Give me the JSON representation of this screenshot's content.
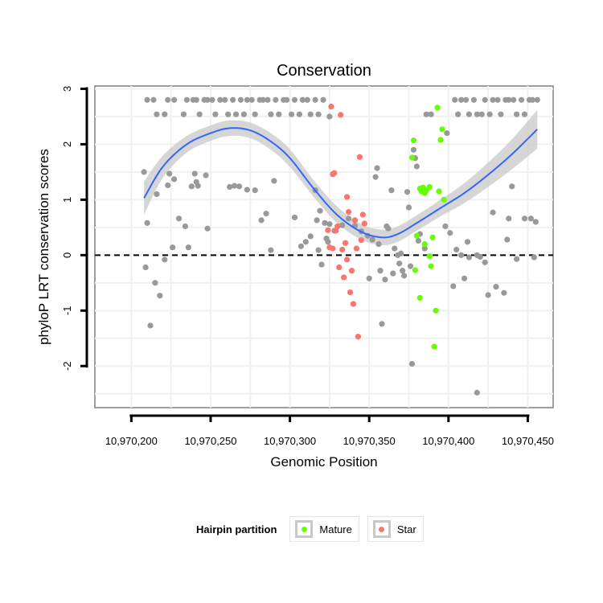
{
  "chart_data": {
    "type": "scatter",
    "title": "Conservation",
    "xlabel": "Genomic Position",
    "ylabel": "phyloP LRT conservation scores",
    "xlim": [
      10970177,
      10970466
    ],
    "ylim": [
      -2.75,
      3.05
    ],
    "x_ticks": [
      10970200,
      10970250,
      10970300,
      10970350,
      10970400,
      10970450
    ],
    "x_tick_labels": [
      "10,970,200",
      "10,970,250",
      "10,970,300",
      "10,970,350",
      "10,970,400",
      "10,970,450"
    ],
    "y_ticks": [
      -2,
      -1,
      0,
      1,
      2,
      3
    ],
    "y_tick_labels": [
      "-2",
      "-1",
      "0",
      "1",
      "2",
      "3"
    ],
    "reference_line": {
      "y": 0,
      "style": "dashed"
    },
    "grid": true,
    "legend": {
      "title": "Hairpin partition",
      "position": "bottom",
      "entries": [
        {
          "name": "Mature",
          "color": "#66ff00"
        },
        {
          "name": "Star",
          "color": "#f8766d"
        }
      ]
    },
    "colors": {
      "other": "#999999",
      "mature": "#66ff00",
      "star": "#f8766d",
      "smooth": "#3366ff",
      "band": "#cccccc"
    },
    "smooth_x": [
      10970208,
      10970220,
      10970235,
      10970250,
      10970262,
      10970275,
      10970288,
      10970300,
      10970315,
      10970330,
      10970345,
      10970358,
      10970368,
      10970380,
      10970395,
      10970410,
      10970425,
      10970440,
      10970456
    ],
    "smooth_y": [
      1.03,
      1.6,
      2.0,
      2.2,
      2.29,
      2.25,
      2.05,
      1.75,
      1.2,
      0.72,
      0.42,
      0.32,
      0.38,
      0.58,
      0.85,
      1.12,
      1.45,
      1.82,
      2.27
    ],
    "smooth_band": [
      0.3,
      0.2,
      0.15,
      0.14,
      0.14,
      0.14,
      0.15,
      0.16,
      0.15,
      0.15,
      0.14,
      0.14,
      0.14,
      0.14,
      0.15,
      0.18,
      0.22,
      0.27,
      0.35
    ],
    "series": [
      {
        "name": "Other",
        "points": [
          [
            10970208,
            1.5
          ],
          [
            10970210,
            0.58
          ],
          [
            10970209,
            -0.22
          ],
          [
            10970212,
            -1.27
          ],
          [
            10970215,
            -0.5
          ],
          [
            10970216,
            1.1
          ],
          [
            10970218,
            -0.73
          ],
          [
            10970221,
            -0.08
          ],
          [
            10970223,
            1.26
          ],
          [
            10970224,
            1.47
          ],
          [
            10970226,
            0.14
          ],
          [
            10970227,
            1.37
          ],
          [
            10970230,
            0.66
          ],
          [
            10970234,
            0.52
          ],
          [
            10970236,
            0.14
          ],
          [
            10970238,
            1.24
          ],
          [
            10970240,
            1.47
          ],
          [
            10970241,
            1.32
          ],
          [
            10970242,
            1.25
          ],
          [
            10970247,
            1.44
          ],
          [
            10970248,
            0.48
          ],
          [
            10970262,
            1.23
          ],
          [
            10970265,
            1.25
          ],
          [
            10970268,
            1.24
          ],
          [
            10970273,
            1.18
          ],
          [
            10970278,
            1.17
          ],
          [
            10970282,
            0.63
          ],
          [
            10970285,
            0.75
          ],
          [
            10970288,
            0.09
          ],
          [
            10970290,
            1.34
          ],
          [
            10970303,
            0.68
          ],
          [
            10970307,
            0.16
          ],
          [
            10970310,
            0.24
          ],
          [
            10970313,
            0.34
          ],
          [
            10970316,
            1.17
          ],
          [
            10970317,
            0.63
          ],
          [
            10970318,
            0.09
          ],
          [
            10970319,
            0.8
          ],
          [
            10970320,
            -0.17
          ],
          [
            10970322,
            0.58
          ],
          [
            10970323,
            0.3
          ],
          [
            10970324,
            0.24
          ],
          [
            10970325,
            0.56
          ],
          [
            10970328,
            0.44
          ],
          [
            10970333,
            0.54
          ],
          [
            10970337,
            0.66
          ],
          [
            10970341,
            0.53
          ],
          [
            10970345,
            0.43
          ],
          [
            10970349,
            0.35
          ],
          [
            10970350,
            -0.42
          ],
          [
            10970352,
            0.28
          ],
          [
            10970354,
            1.41
          ],
          [
            10970355,
            1.57
          ],
          [
            10970356,
            0.2
          ],
          [
            10970357,
            -0.28
          ],
          [
            10970358,
            -1.24
          ],
          [
            10970360,
            -0.44
          ],
          [
            10970361,
            0.52
          ],
          [
            10970362,
            0.48
          ],
          [
            10970364,
            1.17
          ],
          [
            10970365,
            -0.33
          ],
          [
            10970366,
            0.12
          ],
          [
            10970368,
            0.0
          ],
          [
            10970369,
            -0.15
          ],
          [
            10970370,
            0.03
          ],
          [
            10970371,
            -0.28
          ],
          [
            10970372,
            -0.37
          ],
          [
            10970374,
            1.14
          ],
          [
            10970375,
            0.86
          ],
          [
            10970376,
            -0.2
          ],
          [
            10970377,
            -1.96
          ],
          [
            10970378,
            1.9
          ],
          [
            10970379,
            1.75
          ],
          [
            10970380,
            1.6
          ],
          [
            10970381,
            0.26
          ],
          [
            10970382,
            0.38
          ],
          [
            10970385,
            0.12
          ],
          [
            10970398,
            0.52
          ],
          [
            10970399,
            2.2
          ],
          [
            10970401,
            0.4
          ],
          [
            10970403,
            -0.56
          ],
          [
            10970405,
            0.1
          ],
          [
            10970408,
            0.0
          ],
          [
            10970410,
            -0.42
          ],
          [
            10970412,
            0.24
          ],
          [
            10970413,
            -0.04
          ],
          [
            10970418,
            0.0
          ],
          [
            10970420,
            -0.03
          ],
          [
            10970423,
            -0.13
          ],
          [
            10970425,
            -0.72
          ],
          [
            10970428,
            0.77
          ],
          [
            10970430,
            -0.57
          ],
          [
            10970435,
            -0.68
          ],
          [
            10970437,
            0.28
          ],
          [
            10970438,
            0.66
          ],
          [
            10970440,
            1.24
          ],
          [
            10970443,
            -0.07
          ],
          [
            10970448,
            0.66
          ],
          [
            10970452,
            0.66
          ],
          [
            10970454,
            -0.04
          ],
          [
            10970455,
            0.6
          ],
          [
            10970418,
            -2.48
          ],
          [
            10970210,
            2.8
          ],
          [
            10970214,
            2.8
          ],
          [
            10970216,
            2.54
          ],
          [
            10970221,
            2.54
          ],
          [
            10970223,
            2.8
          ],
          [
            10970227,
            2.8
          ],
          [
            10970233,
            2.54
          ],
          [
            10970235,
            2.8
          ],
          [
            10970239,
            2.8
          ],
          [
            10970241,
            2.8
          ],
          [
            10970243,
            2.54
          ],
          [
            10970246,
            2.8
          ],
          [
            10970248,
            2.8
          ],
          [
            10970251,
            2.8
          ],
          [
            10970253,
            2.54
          ],
          [
            10970256,
            2.8
          ],
          [
            10970259,
            2.8
          ],
          [
            10970261,
            2.54
          ],
          [
            10970264,
            2.8
          ],
          [
            10970266,
            2.54
          ],
          [
            10970269,
            2.8
          ],
          [
            10970271,
            2.54
          ],
          [
            10970273,
            2.8
          ],
          [
            10970276,
            2.8
          ],
          [
            10970278,
            2.54
          ],
          [
            10970281,
            2.8
          ],
          [
            10970283,
            2.8
          ],
          [
            10970286,
            2.8
          ],
          [
            10970288,
            2.54
          ],
          [
            10970291,
            2.8
          ],
          [
            10970293,
            2.54
          ],
          [
            10970296,
            2.8
          ],
          [
            10970298,
            2.8
          ],
          [
            10970301,
            2.54
          ],
          [
            10970303,
            2.8
          ],
          [
            10970306,
            2.54
          ],
          [
            10970308,
            2.8
          ],
          [
            10970311,
            2.8
          ],
          [
            10970313,
            2.54
          ],
          [
            10970316,
            2.8
          ],
          [
            10970318,
            2.54
          ],
          [
            10970321,
            2.8
          ],
          [
            10970325,
            2.5
          ],
          [
            10970386,
            2.54
          ],
          [
            10970389,
            2.54
          ],
          [
            10970404,
            2.8
          ],
          [
            10970406,
            2.54
          ],
          [
            10970408,
            2.8
          ],
          [
            10970411,
            2.8
          ],
          [
            10970413,
            2.54
          ],
          [
            10970416,
            2.8
          ],
          [
            10970418,
            2.54
          ],
          [
            10970421,
            2.54
          ],
          [
            10970423,
            2.8
          ],
          [
            10970426,
            2.54
          ],
          [
            10970428,
            2.8
          ],
          [
            10970431,
            2.8
          ],
          [
            10970433,
            2.54
          ],
          [
            10970436,
            2.8
          ],
          [
            10970438,
            2.8
          ],
          [
            10970441,
            2.8
          ],
          [
            10970443,
            2.54
          ],
          [
            10970446,
            2.8
          ],
          [
            10970448,
            2.54
          ],
          [
            10970451,
            2.8
          ],
          [
            10970453,
            2.8
          ],
          [
            10970456,
            2.8
          ]
        ]
      },
      {
        "name": "Mature",
        "points": [
          [
            10970378,
            2.07
          ],
          [
            10970377,
            1.76
          ],
          [
            10970380,
            0.35
          ],
          [
            10970379,
            -0.27
          ],
          [
            10970382,
            1.2
          ],
          [
            10970383,
            1.15
          ],
          [
            10970384,
            1.22
          ],
          [
            10970385,
            1.12
          ],
          [
            10970386,
            1.17
          ],
          [
            10970385,
            0.2
          ],
          [
            10970382,
            -0.77
          ],
          [
            10970388,
            -0.02
          ],
          [
            10970389,
            -0.2
          ],
          [
            10970390,
            0.32
          ],
          [
            10970391,
            -1.65
          ],
          [
            10970392,
            -1.0
          ],
          [
            10970393,
            2.66
          ],
          [
            10970394,
            1.15
          ],
          [
            10970395,
            2.08
          ],
          [
            10970396,
            2.27
          ],
          [
            10970397,
            1.0
          ],
          [
            10970388,
            1.23
          ]
        ]
      },
      {
        "name": "Star",
        "points": [
          [
            10970326,
            2.68
          ],
          [
            10970327,
            0.12
          ],
          [
            10970328,
            1.48
          ],
          [
            10970329,
            0.44
          ],
          [
            10970330,
            0.52
          ],
          [
            10970331,
            -0.22
          ],
          [
            10970332,
            2.53
          ],
          [
            10970333,
            0.1
          ],
          [
            10970334,
            -0.4
          ],
          [
            10970336,
            1.05
          ],
          [
            10970337,
            0.78
          ],
          [
            10970338,
            -0.67
          ],
          [
            10970339,
            -0.28
          ],
          [
            10970340,
            -0.88
          ],
          [
            10970341,
            0.63
          ],
          [
            10970342,
            0.12
          ],
          [
            10970343,
            -1.47
          ],
          [
            10970344,
            1.77
          ],
          [
            10970345,
            0.27
          ],
          [
            10970346,
            0.73
          ],
          [
            10970347,
            0.57
          ],
          [
            10970324,
            0.45
          ],
          [
            10970325,
            0.14
          ],
          [
            10970327,
            1.46
          ],
          [
            10970335,
            0.22
          ],
          [
            10970336,
            -0.08
          ]
        ]
      }
    ]
  }
}
